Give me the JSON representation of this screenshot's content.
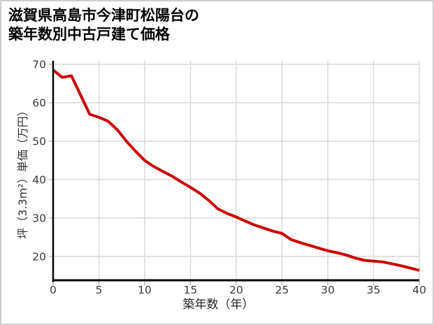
{
  "title": {
    "line1": "滋賀県高島市今津町松陽台の",
    "line2": "築年数別中古戸建て価格"
  },
  "chart_data": {
    "type": "line",
    "title": "滋賀県高島市今津町松陽台の築年数別中古戸建て価格",
    "xlabel": "築年数（年）",
    "ylabel": "坪（3.3m²）単価（万円）",
    "x": [
      0,
      1,
      2,
      3,
      4,
      5,
      6,
      7,
      8,
      9,
      10,
      11,
      12,
      13,
      14,
      15,
      16,
      17,
      18,
      19,
      20,
      21,
      22,
      23,
      24,
      25,
      26,
      27,
      28,
      29,
      30,
      31,
      32,
      33,
      34,
      35,
      36,
      37,
      38,
      39,
      40
    ],
    "values": [
      68.5,
      66.6,
      67.0,
      62.0,
      57.0,
      56.2,
      55.2,
      53.0,
      50.0,
      47.4,
      45.0,
      43.4,
      42.1,
      40.9,
      39.4,
      38.0,
      36.5,
      34.6,
      32.4,
      31.2,
      30.3,
      29.2,
      28.2,
      27.4,
      26.6,
      26.0,
      24.4,
      23.6,
      22.9,
      22.2,
      21.5,
      21.0,
      20.4,
      19.6,
      19.0,
      18.8,
      18.6,
      18.1,
      17.6,
      17.0,
      16.4
    ],
    "xticks": [
      0,
      5,
      10,
      15,
      20,
      25,
      30,
      35,
      40
    ],
    "yticks": [
      20,
      30,
      40,
      50,
      60,
      70
    ],
    "xlim": [
      0,
      40
    ],
    "ylim": [
      13.6,
      70.9
    ],
    "grid": true,
    "legend": "none",
    "line_color": "#cc0000",
    "grid_color": "#d9d9d9",
    "tick_color": "#bdbdbd",
    "axis_color": "#000000",
    "tick_label_color": "#3a3a3a"
  }
}
